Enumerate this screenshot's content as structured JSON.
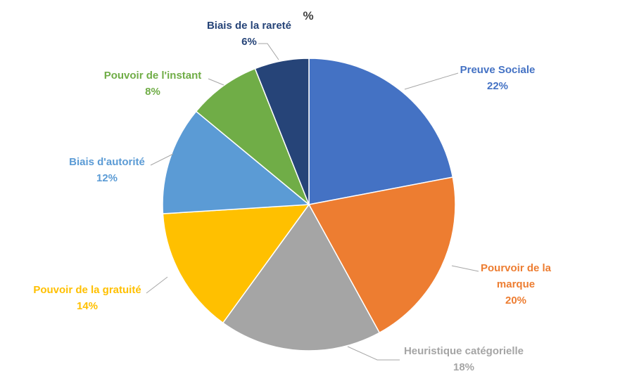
{
  "chart_data": {
    "type": "pie",
    "title": "%",
    "start_angle_deg": 0,
    "direction": "clockwise",
    "slices": [
      {
        "label_lines": [
          "Preuve Sociale"
        ],
        "value": 22,
        "value_label": "22%",
        "color": "#4472c4"
      },
      {
        "label_lines": [
          "Pourvoir de la",
          "marque"
        ],
        "value": 20,
        "value_label": "20%",
        "color": "#ed7d31"
      },
      {
        "label_lines": [
          "Heuristique catégorielle"
        ],
        "value": 18,
        "value_label": "18%",
        "color": "#a5a5a5"
      },
      {
        "label_lines": [
          "Pouvoir de la gratuité"
        ],
        "value": 14,
        "value_label": "14%",
        "color": "#ffc000"
      },
      {
        "label_lines": [
          "Biais d'autorité"
        ],
        "value": 12,
        "value_label": "12%",
        "color": "#5b9bd5"
      },
      {
        "label_lines": [
          "Pouvoir de l'instant"
        ],
        "value": 8,
        "value_label": "8%",
        "color": "#70ad47"
      },
      {
        "label_lines": [
          "Biais de la rareté"
        ],
        "value": 6,
        "value_label": "6%",
        "color": "#264478"
      }
    ]
  }
}
